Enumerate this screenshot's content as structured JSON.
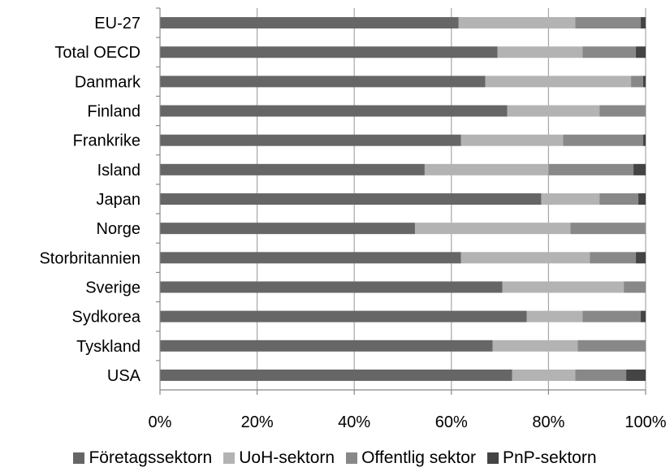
{
  "chart_data": {
    "type": "bar",
    "orientation": "horizontal",
    "stacked": "percent",
    "categories": [
      "EU-27",
      "Total OECD",
      "Danmark",
      "Finland",
      "Frankrike",
      "Island",
      "Japan",
      "Norge",
      "Storbritannien",
      "Sverige",
      "Sydkorea",
      "Tyskland",
      "USA"
    ],
    "series": [
      {
        "name": "Företagssektorn",
        "color": "#666666",
        "values": [
          61.5,
          69.5,
          67,
          71.5,
          62,
          54.5,
          78.5,
          52.5,
          62,
          70.5,
          75.5,
          68.5,
          72.5
        ]
      },
      {
        "name": "UoH-sektorn",
        "color": "#b3b3b3",
        "values": [
          24,
          17.5,
          30,
          19,
          21,
          25.5,
          12,
          32,
          26.5,
          25,
          11.5,
          17.5,
          13
        ]
      },
      {
        "name": "Offentlig sektor",
        "color": "#888888",
        "values": [
          13.5,
          11,
          2.5,
          9.5,
          16.5,
          17.5,
          8,
          15.5,
          9.5,
          4.5,
          12,
          14,
          10.5
        ]
      },
      {
        "name": "PnP-sektorn",
        "color": "#444444",
        "values": [
          1,
          2,
          0.5,
          0,
          0.5,
          2.5,
          1.5,
          0,
          2,
          0,
          1,
          0,
          4
        ]
      }
    ],
    "xlim": [
      0,
      100
    ],
    "x_ticks": [
      "0%",
      "20%",
      "40%",
      "60%",
      "80%",
      "100%"
    ],
    "legend_position": "bottom",
    "grid": "vertical"
  }
}
